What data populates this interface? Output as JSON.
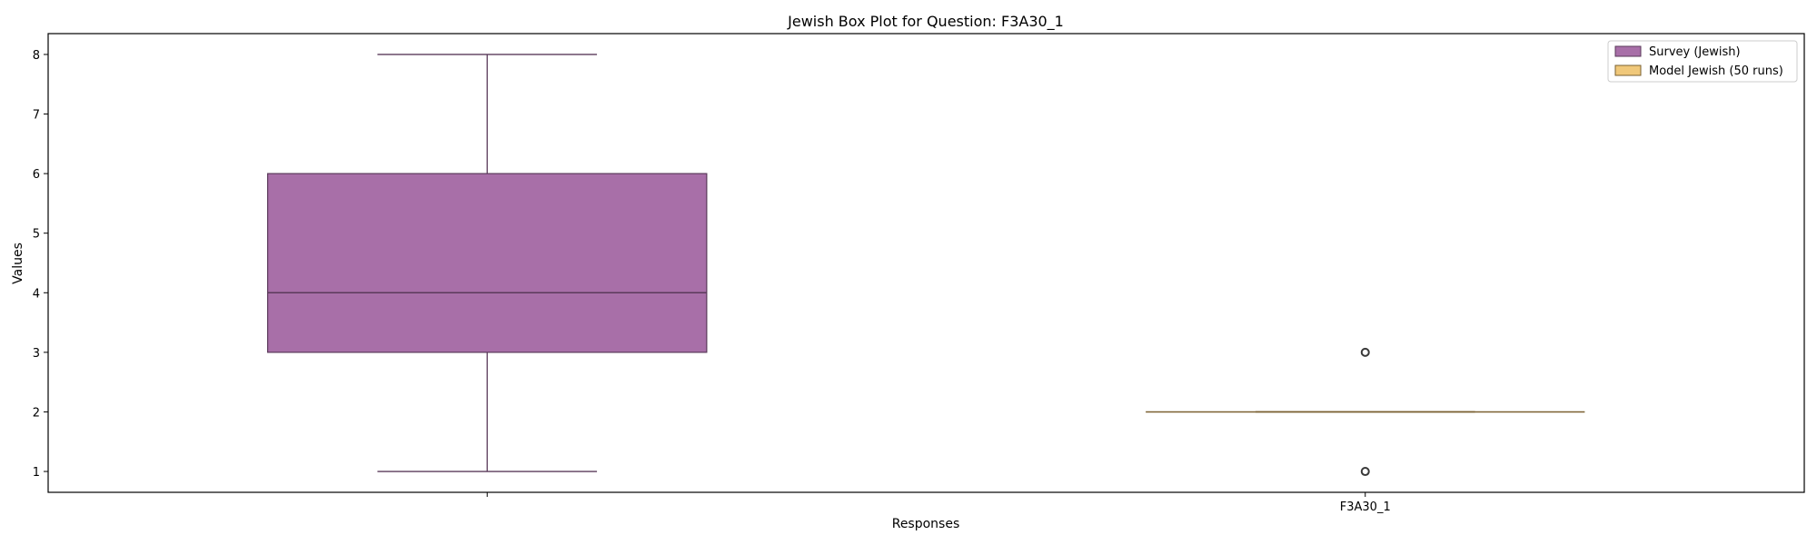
{
  "chart_data": {
    "type": "box",
    "title": "Jewish Box Plot for Question: F3A30_1",
    "xlabel": "Responses",
    "ylabel": "Values",
    "ylim": [
      0.65,
      8.35
    ],
    "yticks": [
      1,
      2,
      3,
      4,
      5,
      6,
      7,
      8
    ],
    "categories": [
      "",
      "F3A30_1"
    ],
    "legend_position": "top-right",
    "grid": false,
    "series": [
      {
        "name": "Survey (Jewish)",
        "color": "#a86fa8",
        "edge_color": "#5a3a5a",
        "category_index": 0,
        "whisker_low": 1,
        "q1": 3,
        "median": 4,
        "q3": 6,
        "whisker_high": 8,
        "outliers": []
      },
      {
        "name": "Model Jewish (50 runs)",
        "color": "#f0c87a",
        "edge_color": "#7a6030",
        "category_index": 1,
        "whisker_low": 2,
        "q1": 2,
        "median": 2,
        "q3": 2,
        "whisker_high": 2,
        "outliers": [
          3,
          1
        ]
      }
    ]
  }
}
